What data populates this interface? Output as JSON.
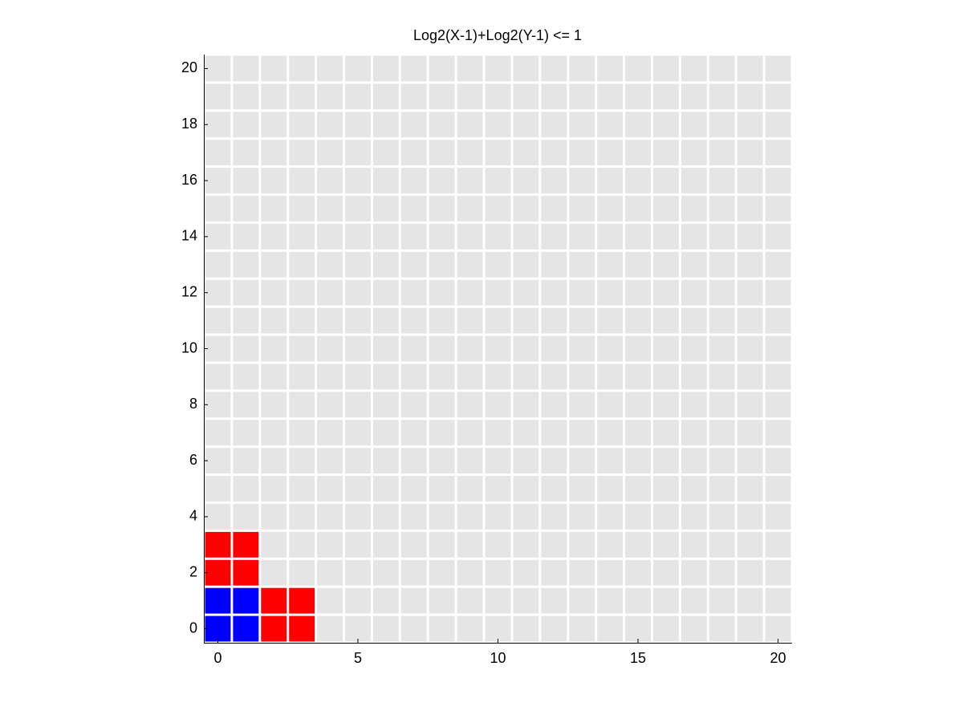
{
  "chart_data": {
    "type": "grid",
    "title": "Log2(X-1)+Log2(Y-1) <= 1",
    "background_color": "#e5e5e5",
    "series": [
      {
        "color": "#0000ff",
        "x": [
          0,
          1,
          0,
          1
        ],
        "y": [
          0,
          0,
          1,
          1
        ]
      },
      {
        "color": "#ff0000",
        "x": [
          2,
          3,
          2,
          3,
          0,
          1,
          0,
          1
        ],
        "y": [
          0,
          0,
          1,
          1,
          2,
          2,
          3,
          3
        ]
      }
    ],
    "xlim": [
      -0.5,
      20.5
    ],
    "ylim": [
      -0.5,
      20.5
    ],
    "xticks": [
      0,
      5,
      10,
      15,
      20
    ],
    "yticks": [
      0,
      2,
      4,
      6,
      8,
      10,
      12,
      14,
      16,
      18,
      20
    ]
  }
}
